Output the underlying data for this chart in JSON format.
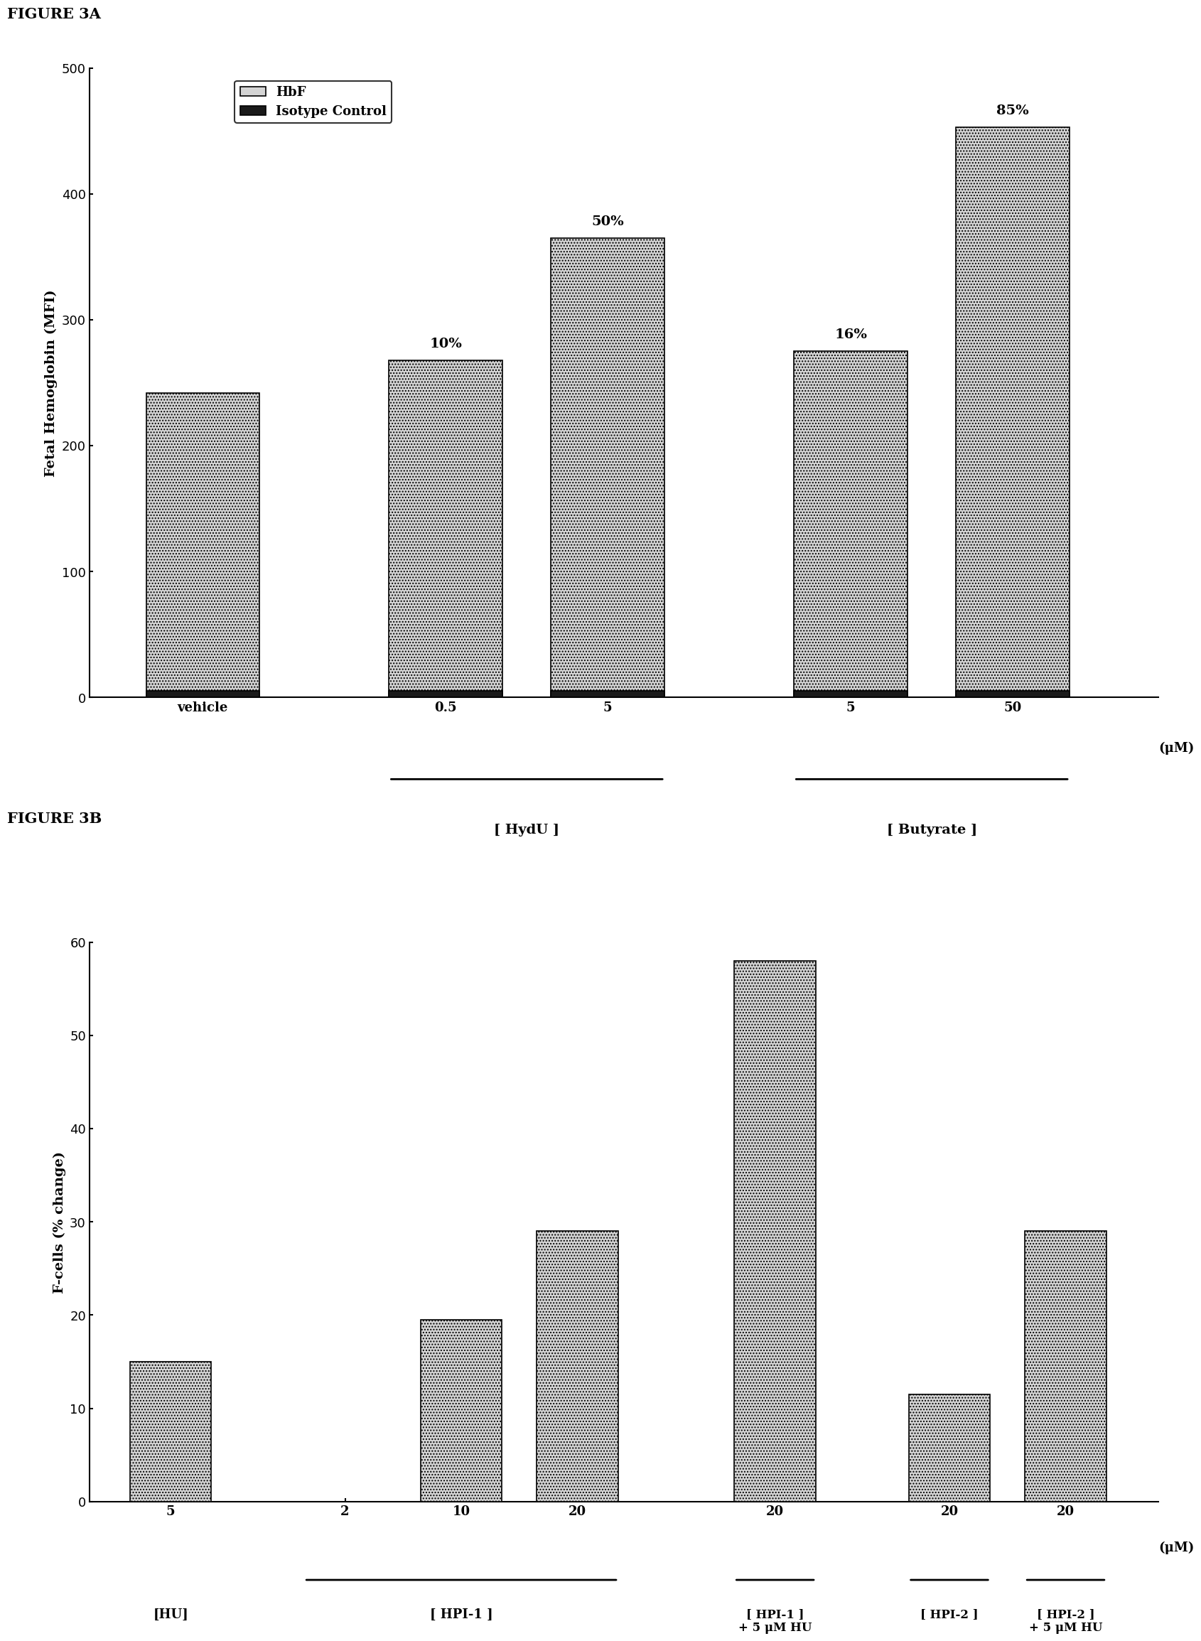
{
  "fig3a": {
    "title": "FIGURE 3A",
    "ylabel": "Fetal Hemoglobin (MFI)",
    "ylim": [
      0,
      500
    ],
    "yticks": [
      0,
      100,
      200,
      300,
      400,
      500
    ],
    "bar_values": [
      242,
      268,
      365,
      275,
      453
    ],
    "bar_labels_pct": [
      "",
      "10%",
      "50%",
      "16%",
      "85%"
    ],
    "xtick_labels": [
      "vehicle",
      "0.5",
      "5",
      "5",
      "50"
    ],
    "xlabel_mu": "(μM)",
    "bracket_hydu_label": "[ HydU ]",
    "bracket_butyrate_label": "[ Butyrate ]",
    "isotype_values": [
      5,
      5,
      5,
      5,
      5
    ],
    "bar_color_hbf": "#d4d4d4",
    "bar_color_isotype": "#1a1a1a",
    "legend_hbf": "HbF",
    "legend_isotype": "Isotype Control"
  },
  "fig3b": {
    "title": "FIGURE 3B",
    "ylabel": "F-cells (% change)",
    "ylim": [
      0,
      60
    ],
    "yticks": [
      0,
      10,
      20,
      30,
      40,
      50,
      60
    ],
    "bar_color": "#d4d4d4",
    "xlabel_mu": "(μM)",
    "hpi1_label": "[ HPI-1 ]",
    "hpi1_hu_label": "[ HPI-1 ]\n+ 5 μM HU",
    "hpi2_label": "[ HPI-2 ]",
    "hpi2_hu_label": "[ HPI-2 ]\n+ 5 μM HU",
    "hu_label": "[HU]"
  },
  "figure_bg": "#ffffff",
  "bar_edge_color": "#000000"
}
